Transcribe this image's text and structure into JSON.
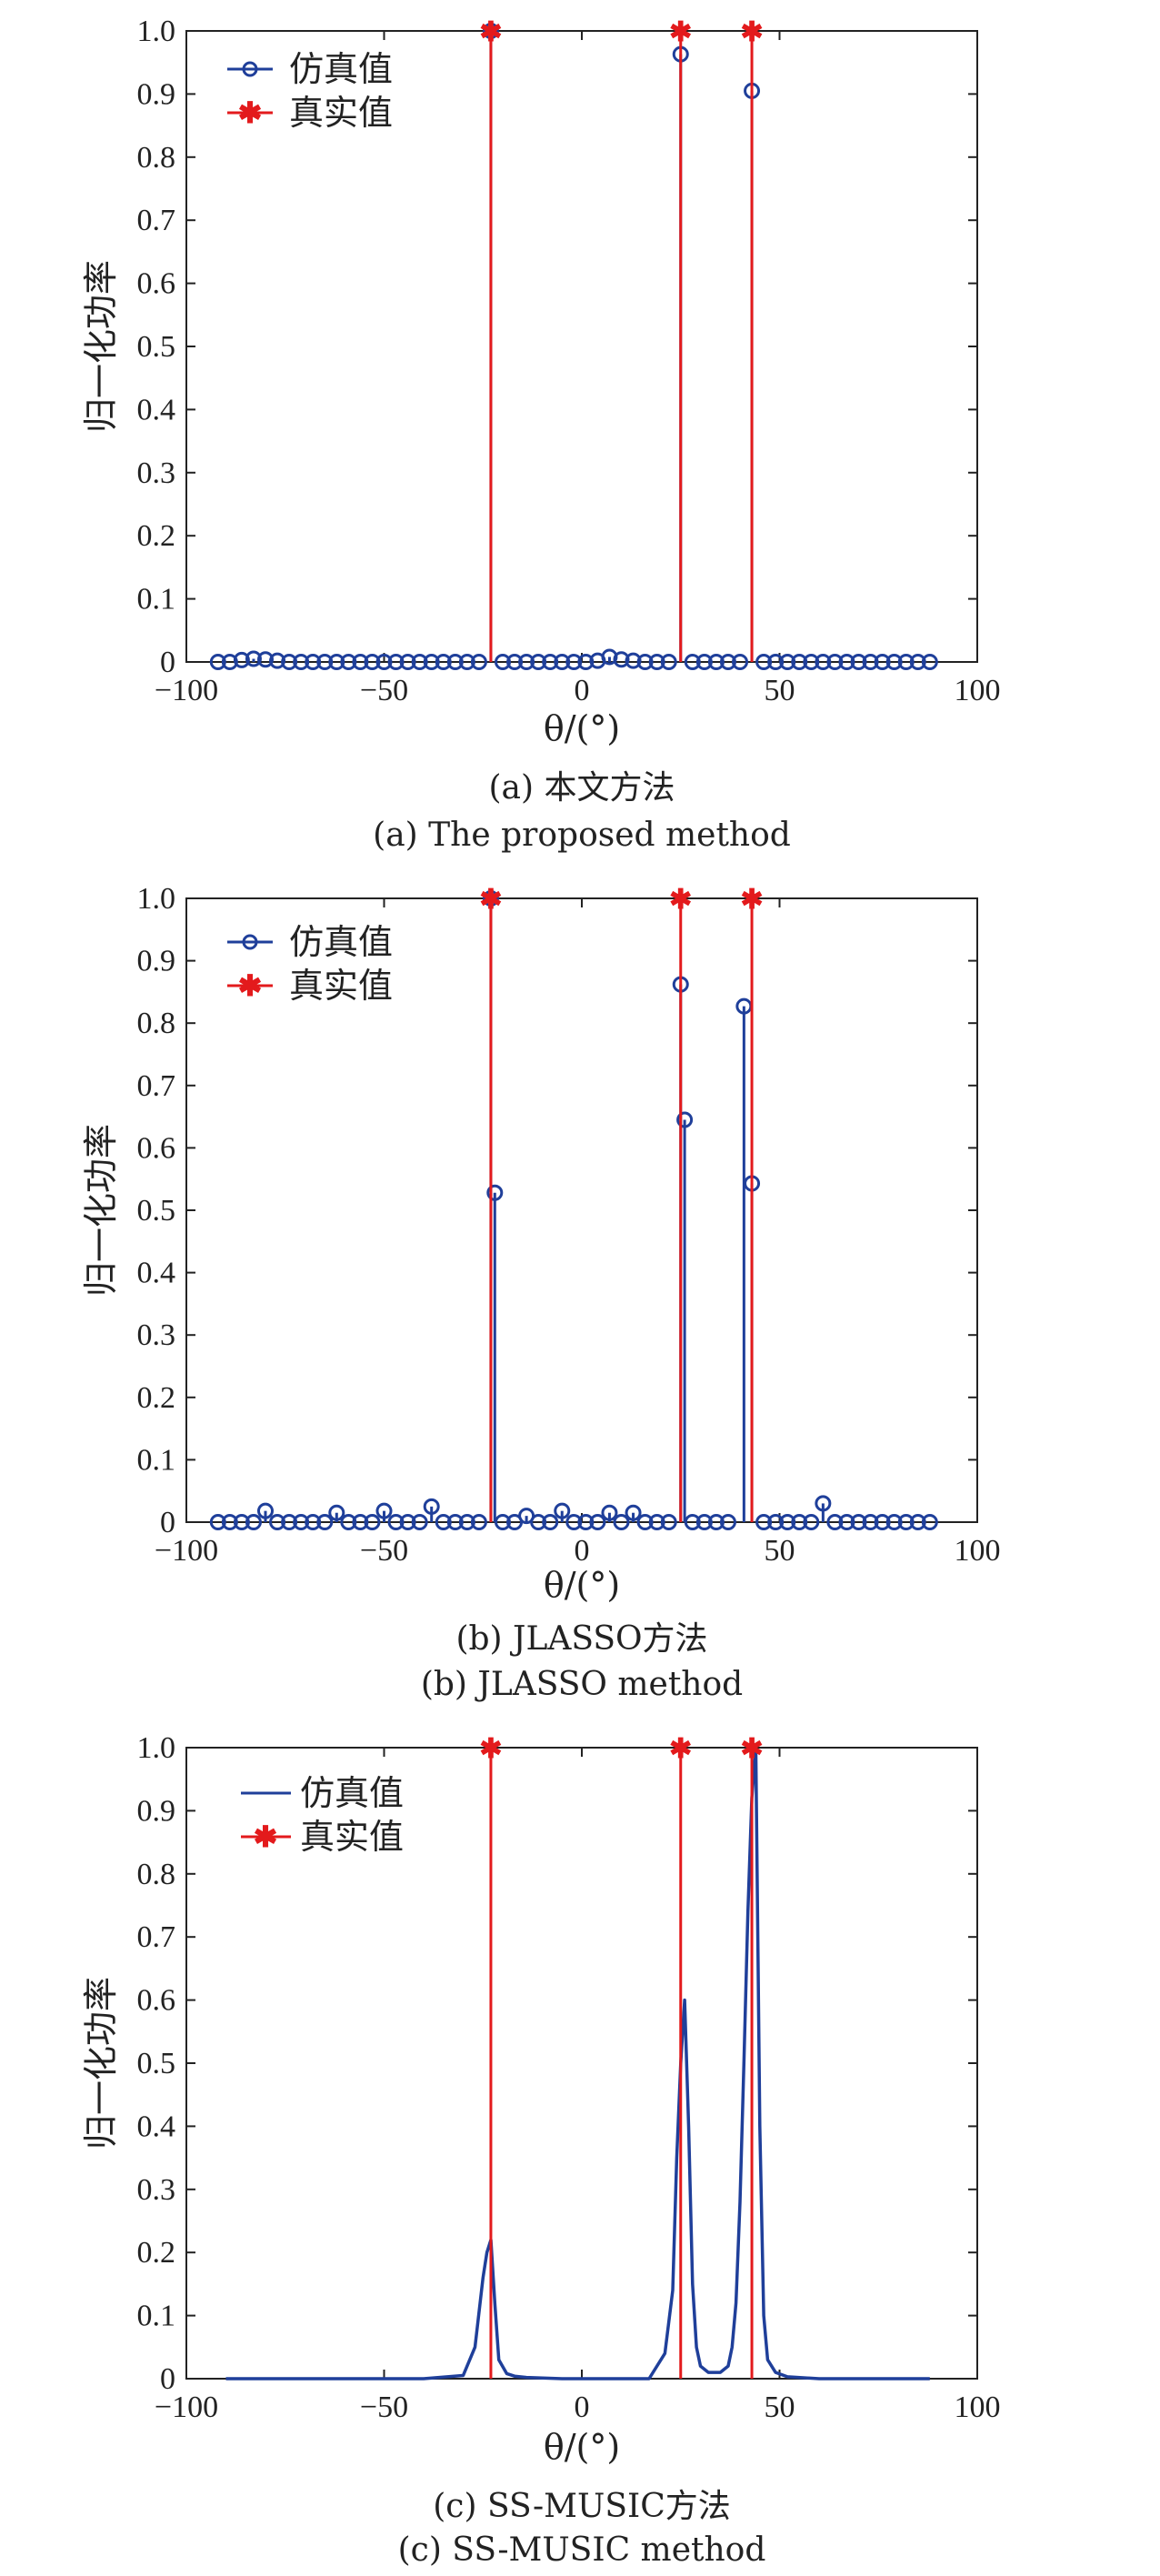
{
  "colors": {
    "sim": "#1f3f9a",
    "true": "#e31a1c",
    "axis": "#222222"
  },
  "chart_data": [
    {
      "type": "scatter",
      "mode": "stem",
      "xlabel": "θ/(°)",
      "ylabel": "归一化功率",
      "xlim": [
        -100,
        100
      ],
      "ylim": [
        0,
        1.0
      ],
      "xticks": [
        -100,
        -50,
        0,
        50,
        100
      ],
      "yticks": [
        0,
        0.1,
        0.2,
        0.3,
        0.4,
        0.5,
        0.6,
        0.7,
        0.8,
        0.9,
        1.0
      ],
      "xtick_labels": [
        "−100",
        "−50",
        "0",
        "50",
        "100"
      ],
      "ytick_labels": [
        "0",
        "0.1",
        "0.2",
        "0.3",
        "0.4",
        "0.5",
        "0.6",
        "0.7",
        "0.8",
        "0.9",
        "1.0"
      ],
      "legend": [
        "仿真值",
        "真实值"
      ],
      "legend_position": "top-left",
      "caption_cn": "(a) 本文方法",
      "caption_en": "(a) The proposed method",
      "series": [
        {
          "name": "仿真值",
          "style": "stem-circle",
          "x": [
            -92,
            -89,
            -86,
            -83,
            -80,
            -77,
            -74,
            -71,
            -68,
            -65,
            -62,
            -59,
            -56,
            -53,
            -50,
            -47,
            -44,
            -41,
            -38,
            -35,
            -32,
            -29,
            -26,
            -23,
            -20,
            -17,
            -14,
            -11,
            -8,
            -5,
            -2,
            1,
            4,
            7,
            10,
            13,
            16,
            19,
            22,
            25,
            28,
            31,
            34,
            37,
            40,
            43,
            46,
            49,
            52,
            55,
            58,
            61,
            64,
            67,
            70,
            73,
            76,
            79,
            82,
            85,
            88
          ],
          "y": [
            0,
            0,
            0.003,
            0.005,
            0.004,
            0.002,
            0,
            0,
            0,
            0,
            0,
            0,
            0,
            0,
            0,
            0,
            0,
            0,
            0,
            0,
            0,
            0,
            0,
            1.0,
            0,
            0,
            0,
            0,
            0,
            0,
            0,
            0,
            0.002,
            0.008,
            0.004,
            0.002,
            0,
            0,
            0,
            0.963,
            0,
            0,
            0,
            0,
            0,
            0.905,
            0,
            0,
            0,
            0,
            0,
            0,
            0,
            0,
            0,
            0,
            0,
            0,
            0,
            0,
            0
          ]
        },
        {
          "name": "真实值",
          "style": "stem-star",
          "x": [
            -23,
            25,
            43
          ],
          "y": [
            1,
            1,
            1
          ]
        }
      ]
    },
    {
      "type": "scatter",
      "mode": "stem",
      "xlabel": "θ/(°)",
      "ylabel": "归一化功率",
      "xlim": [
        -100,
        100
      ],
      "ylim": [
        0,
        1.0
      ],
      "xticks": [
        -100,
        -50,
        0,
        50,
        100
      ],
      "yticks": [
        0,
        0.1,
        0.2,
        0.3,
        0.4,
        0.5,
        0.6,
        0.7,
        0.8,
        0.9,
        1.0
      ],
      "xtick_labels": [
        "−100",
        "−50",
        "0",
        "50",
        "100"
      ],
      "ytick_labels": [
        "0",
        "0.1",
        "0.2",
        "0.3",
        "0.4",
        "0.5",
        "0.6",
        "0.7",
        "0.8",
        "0.9",
        "1.0"
      ],
      "legend": [
        "仿真值",
        "真实值"
      ],
      "legend_position": "top-left",
      "caption_cn": "(b) JLASSO方法",
      "caption_en": "(b) JLASSO method",
      "series": [
        {
          "name": "仿真值",
          "style": "stem-circle",
          "x": [
            -92,
            -89,
            -86,
            -83,
            -80,
            -77,
            -74,
            -71,
            -68,
            -65,
            -62,
            -59,
            -56,
            -53,
            -50,
            -47,
            -44,
            -41,
            -38,
            -35,
            -32,
            -29,
            -26,
            -23,
            -22,
            -20,
            -17,
            -14,
            -11,
            -8,
            -5,
            -2,
            1,
            4,
            7,
            10,
            13,
            16,
            19,
            22,
            25,
            26,
            28,
            31,
            34,
            37,
            41,
            43,
            46,
            49,
            52,
            55,
            58,
            61,
            64,
            67,
            70,
            73,
            76,
            79,
            82,
            85,
            88
          ],
          "y": [
            0,
            0,
            0,
            0,
            0.018,
            0,
            0,
            0,
            0,
            0,
            0.015,
            0,
            0,
            0,
            0.018,
            0,
            0,
            0,
            0.025,
            0,
            0,
            0,
            0,
            1.0,
            0.528,
            0,
            0,
            0.01,
            0,
            0,
            0.018,
            0,
            0,
            0,
            0.015,
            0,
            0.015,
            0,
            0,
            0,
            0.862,
            0.645,
            0,
            0,
            0,
            0,
            0.827,
            0.543,
            0,
            0,
            0,
            0,
            0,
            0.03,
            0,
            0,
            0,
            0,
            0,
            0,
            0,
            0,
            0
          ]
        },
        {
          "name": "真实值",
          "style": "stem-star",
          "x": [
            -23,
            25,
            43
          ],
          "y": [
            1,
            1,
            1
          ]
        }
      ]
    },
    {
      "type": "line",
      "xlabel": "θ/(°)",
      "ylabel": "归一化功率",
      "xlim": [
        -100,
        100
      ],
      "ylim": [
        0,
        1.0
      ],
      "xticks": [
        -100,
        -50,
        0,
        50,
        100
      ],
      "yticks": [
        0,
        0.1,
        0.2,
        0.3,
        0.4,
        0.5,
        0.6,
        0.7,
        0.8,
        0.9,
        1.0
      ],
      "xtick_labels": [
        "−100",
        "−50",
        "0",
        "50",
        "100"
      ],
      "ytick_labels": [
        "0",
        "0.1",
        "0.2",
        "0.3",
        "0.4",
        "0.5",
        "0.6",
        "0.7",
        "0.8",
        "0.9",
        "1.0"
      ],
      "legend": [
        "仿真值",
        "真实值"
      ],
      "legend_position": "top-left",
      "caption_cn": "(c) SS-MUSIC方法",
      "caption_en": "(c) SS-MUSIC method",
      "series": [
        {
          "name": "仿真值",
          "style": "line",
          "x": [
            -90,
            -40,
            -30,
            -27,
            -25,
            -24,
            -23,
            -22,
            -21,
            -19,
            -17,
            -14,
            -5,
            17,
            21,
            23,
            24,
            25,
            26,
            27,
            28,
            29,
            30,
            32,
            35,
            37,
            38,
            39,
            40,
            41,
            42,
            43,
            44,
            45,
            46,
            47,
            49,
            52,
            60,
            88
          ],
          "y": [
            0,
            0,
            0.005,
            0.05,
            0.16,
            0.2,
            0.22,
            0.12,
            0.03,
            0.008,
            0.004,
            0.002,
            0,
            0,
            0.04,
            0.14,
            0.35,
            0.5,
            0.6,
            0.4,
            0.15,
            0.05,
            0.02,
            0.01,
            0.01,
            0.02,
            0.05,
            0.12,
            0.28,
            0.5,
            0.74,
            0.92,
            1.0,
            0.4,
            0.1,
            0.03,
            0.01,
            0.003,
            0,
            0
          ]
        },
        {
          "name": "真实值",
          "style": "stem-star",
          "x": [
            -23,
            25,
            43
          ],
          "y": [
            1,
            1,
            1
          ]
        }
      ]
    }
  ]
}
